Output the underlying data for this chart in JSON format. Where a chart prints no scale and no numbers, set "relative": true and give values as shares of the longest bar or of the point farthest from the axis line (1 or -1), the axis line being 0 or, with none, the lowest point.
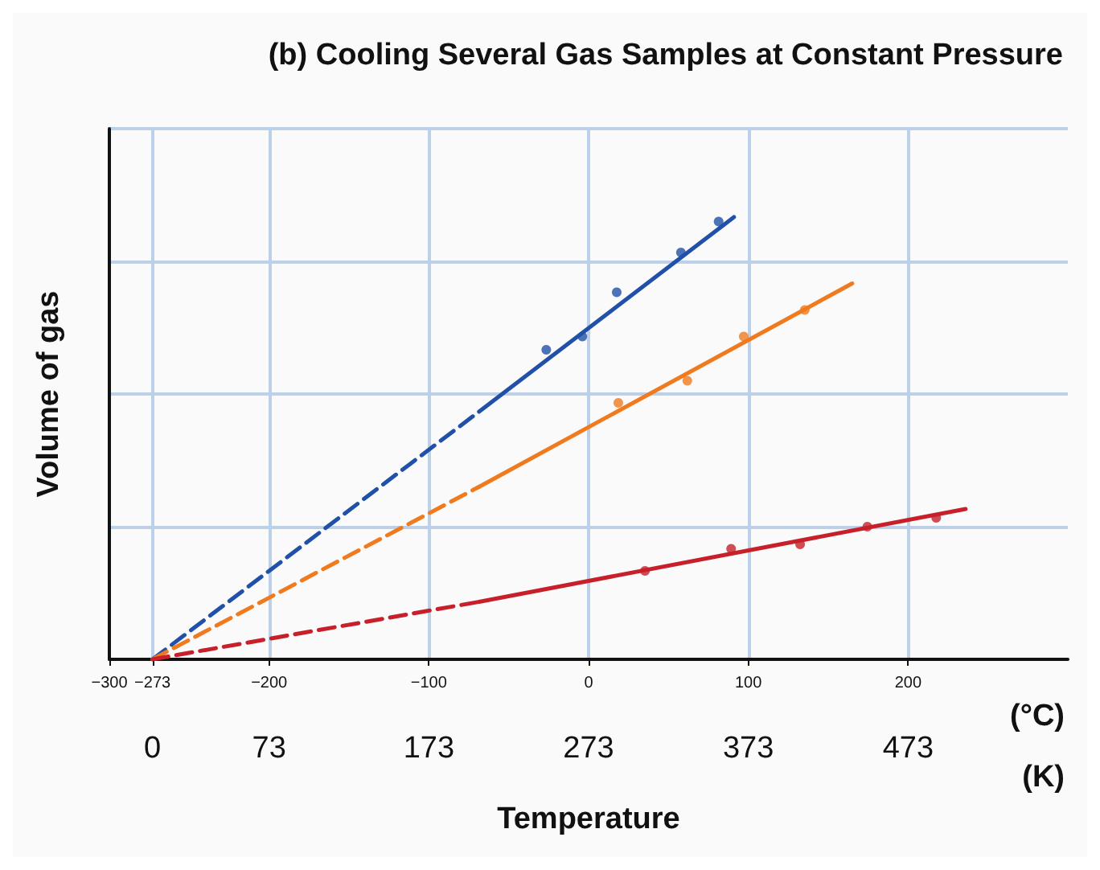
{
  "chart_data": {
    "type": "line",
    "title": "(b) Cooling Several Gas Samples at Constant Pressure",
    "xlabel": "Temperature",
    "ylabel": "Volume of gas",
    "relative": true,
    "xlim": [
      -300,
      300
    ],
    "xticks": [
      {
        "value": -300,
        "label": "−300"
      },
      {
        "value": -273,
        "label": "−273"
      },
      {
        "value": -200,
        "label": "−200"
      },
      {
        "value": -100,
        "label": "−100"
      },
      0,
      100,
      200
    ],
    "x2lim": [
      -27,
      573
    ],
    "x2ticks": [
      0,
      73,
      173,
      273,
      373,
      473
    ],
    "annotations": [
      "(°C)",
      "(K)"
    ],
    "grid": true,
    "series": [
      {
        "type": "line",
        "color": "#2050a8",
        "line_style": "dashed",
        "marker": "none",
        "x": [
          -273,
          -68.6
        ],
        "values": [
          0,
          0.56
        ]
      },
      {
        "type": "line",
        "color": "#2050a8",
        "line_style": "solid",
        "marker": "none",
        "x": [
          -68.6,
          91
        ],
        "values": [
          0.56,
          1
        ]
      },
      {
        "type": "scatter",
        "color": "#2050a8",
        "marker": "circle",
        "x": [
          -26.5,
          -3.9,
          17.6,
          57.8,
          81.4
        ],
        "values": [
          0.7,
          0.73,
          0.83,
          0.92,
          0.99
        ]
      },
      {
        "type": "line",
        "color": "#f07a1e",
        "line_style": "dashed",
        "marker": "none",
        "x": [
          -273,
          -68.6
        ],
        "values": [
          0,
          0.39
        ]
      },
      {
        "type": "line",
        "color": "#f07a1e",
        "line_style": "solid",
        "marker": "none",
        "x": [
          -68.6,
          165
        ],
        "values": [
          0.39,
          0.85
        ]
      },
      {
        "type": "scatter",
        "color": "#f07a1e",
        "marker": "circle",
        "x": [
          18.6,
          61.8,
          97.1,
          135.3
        ],
        "values": [
          0.58,
          0.63,
          0.73,
          0.79
        ]
      },
      {
        "type": "line",
        "color": "#c8202a",
        "line_style": "dashed",
        "marker": "none",
        "x": [
          -273,
          -68.6
        ],
        "values": [
          0,
          0.13
        ]
      },
      {
        "type": "line",
        "color": "#c8202a",
        "line_style": "solid",
        "marker": "none",
        "x": [
          -68.6,
          236
        ],
        "values": [
          0.13,
          0.34
        ]
      },
      {
        "type": "scatter",
        "color": "#c8202a",
        "marker": "circle",
        "x": [
          35.3,
          89.2,
          132.4,
          174.5,
          217.6
        ],
        "values": [
          0.2,
          0.25,
          0.26,
          0.3,
          0.32
        ]
      }
    ]
  }
}
